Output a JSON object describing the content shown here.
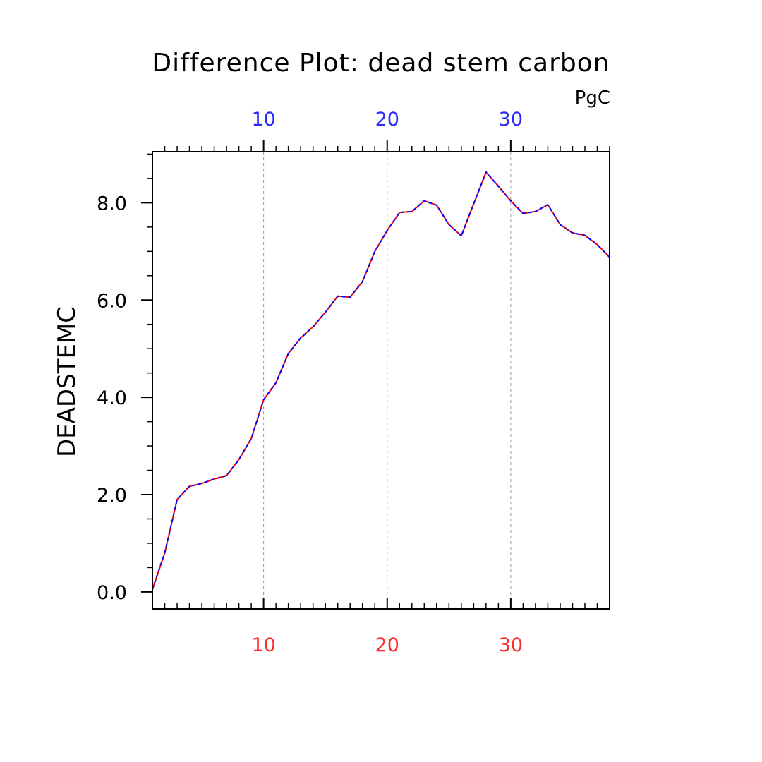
{
  "chart_data": {
    "type": "line",
    "title": "Difference Plot: dead stem carbon",
    "units": "PgC",
    "ylabel": "DEADSTEMC",
    "xlabel": "",
    "xlim": [
      1,
      38
    ],
    "ylim": [
      -0.35,
      9.05
    ],
    "y_ticks": [
      0.0,
      2.0,
      4.0,
      6.0,
      8.0
    ],
    "y_tick_labels": [
      "0.0",
      "2.0",
      "4.0",
      "6.0",
      "8.0"
    ],
    "x_ticks": [
      10,
      20,
      30
    ],
    "x_tick_labels_top": [
      "10",
      "20",
      "30"
    ],
    "x_tick_labels_bottom": [
      "10",
      "20",
      "30"
    ],
    "top_axis_color": "#2a2aff",
    "bottom_axis_color": "#ff2a2a",
    "vertical_gridlines": [
      10,
      20,
      30
    ],
    "grid": "vertical dashed",
    "series": [
      {
        "color": "#ff0000",
        "style": "solid",
        "x": [
          1,
          2,
          3,
          4,
          5,
          6,
          7,
          8,
          9,
          10,
          11,
          12,
          13,
          14,
          15,
          16,
          17,
          18,
          19,
          20,
          21,
          22,
          23,
          24,
          25,
          26,
          27,
          28,
          29,
          30,
          31,
          32,
          33,
          34,
          35,
          36,
          37,
          38
        ],
        "values": [
          0.05,
          0.8,
          1.9,
          2.17,
          2.23,
          2.32,
          2.39,
          2.72,
          3.15,
          3.95,
          4.3,
          4.9,
          5.22,
          5.45,
          5.75,
          6.08,
          6.06,
          6.38,
          7.0,
          7.43,
          7.8,
          7.82,
          8.04,
          7.95,
          7.55,
          7.32,
          7.98,
          8.63,
          8.34,
          8.04,
          7.78,
          7.82,
          7.96,
          7.55,
          7.38,
          7.33,
          7.14,
          6.88
        ]
      },
      {
        "color": "#0000ff",
        "style": "dashed",
        "x": [
          1,
          2,
          3,
          4,
          5,
          6,
          7,
          8,
          9,
          10,
          11,
          12,
          13,
          14,
          15,
          16,
          17,
          18,
          19,
          20,
          21,
          22,
          23,
          24,
          25,
          26,
          27,
          28,
          29,
          30,
          31,
          32,
          33,
          34,
          35,
          36,
          37,
          38
        ],
        "values": [
          0.05,
          0.8,
          1.9,
          2.17,
          2.23,
          2.32,
          2.39,
          2.72,
          3.15,
          3.95,
          4.3,
          4.9,
          5.22,
          5.45,
          5.75,
          6.08,
          6.06,
          6.38,
          7.0,
          7.43,
          7.8,
          7.82,
          8.04,
          7.95,
          7.55,
          7.32,
          7.98,
          8.63,
          8.34,
          8.04,
          7.78,
          7.82,
          7.96,
          7.55,
          7.38,
          7.33,
          7.14,
          6.88
        ]
      }
    ]
  }
}
